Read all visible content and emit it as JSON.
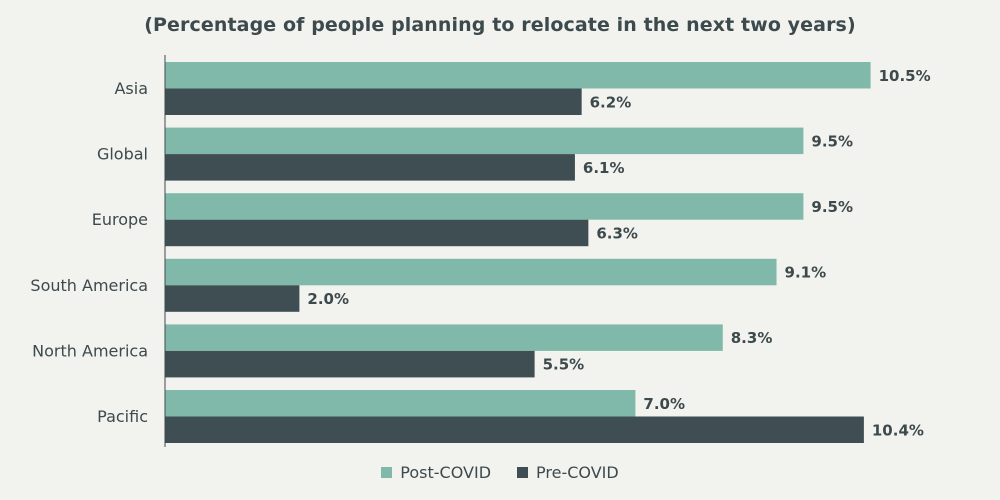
{
  "chart_data": {
    "type": "bar",
    "orientation": "horizontal",
    "title": "(Percentage of people planning to relocate in the next two years)",
    "xlabel": "",
    "ylabel": "",
    "xlim": [
      0,
      12
    ],
    "grid": false,
    "legend_position": "bottom-center",
    "categories": [
      "Asia",
      "Global",
      "Europe",
      "South America",
      "North America",
      "Pacific"
    ],
    "series": [
      {
        "name": "Post-COVID",
        "color": "#80b9aa",
        "values": [
          10.5,
          9.5,
          9.5,
          9.1,
          8.3,
          7.0
        ],
        "labels": [
          "10.5%",
          "9.5%",
          "9.5%",
          "9.1%",
          "8.3%",
          "7.0%"
        ]
      },
      {
        "name": "Pre-COVID",
        "color": "#3f4e52",
        "values": [
          6.2,
          6.1,
          6.3,
          2.0,
          5.5,
          10.4
        ],
        "labels": [
          "6.2%",
          "6.1%",
          "6.3%",
          "2.0%",
          "5.5%",
          "10.4%"
        ]
      }
    ]
  }
}
